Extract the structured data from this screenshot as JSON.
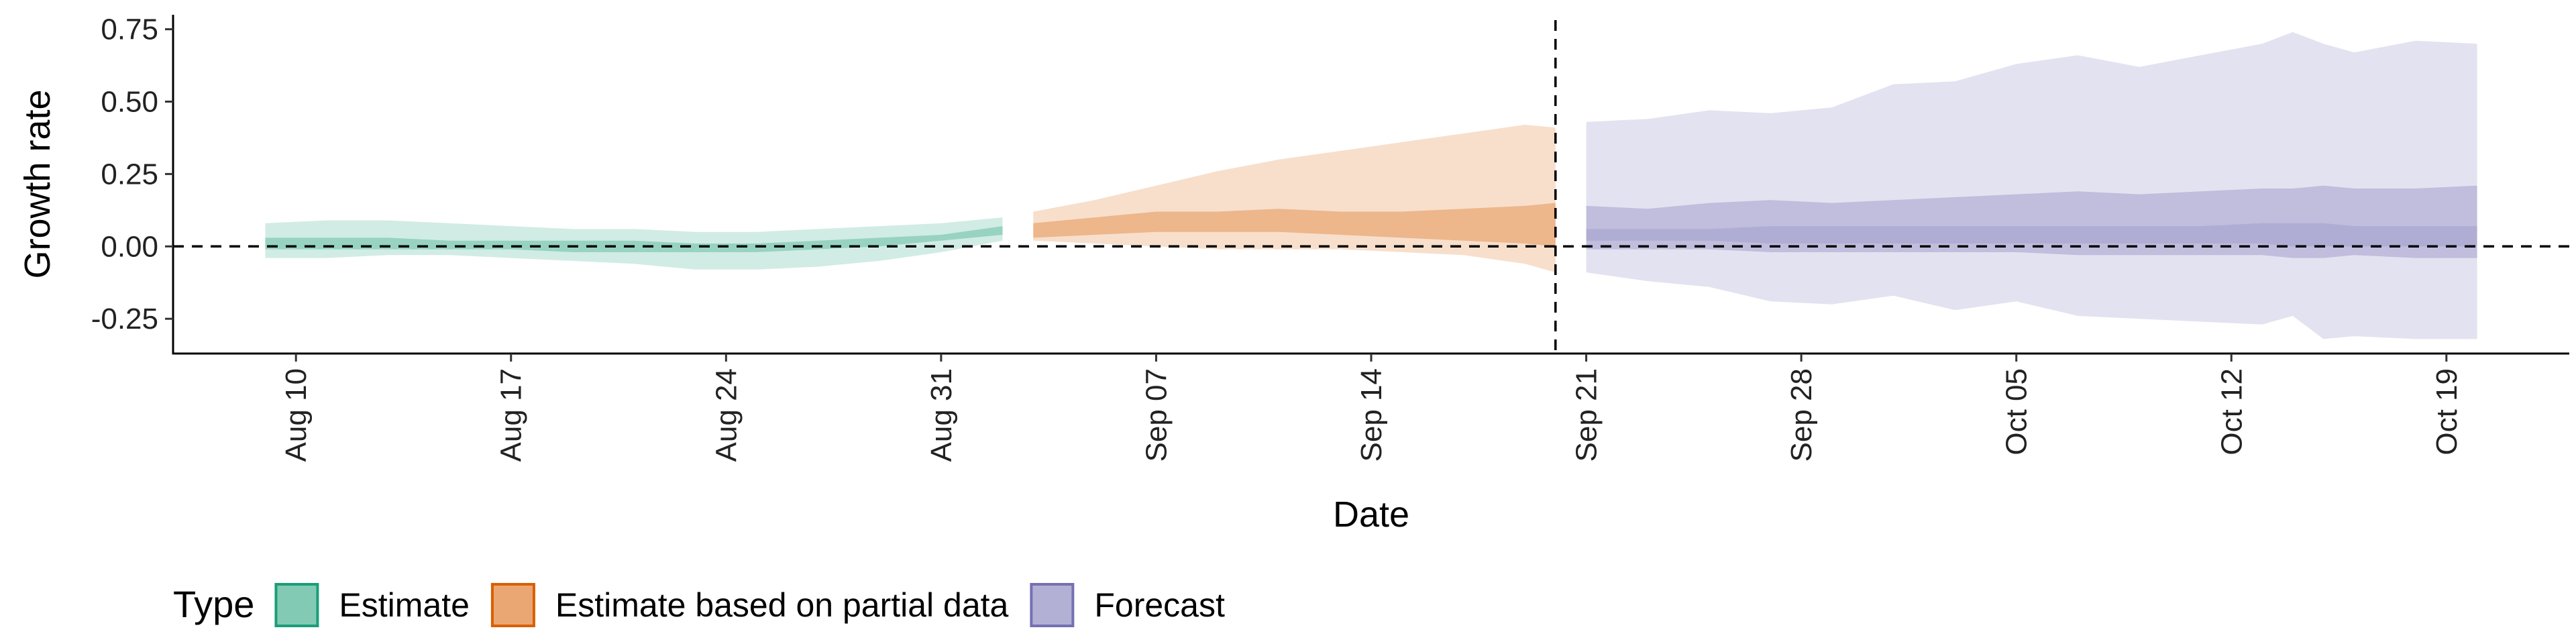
{
  "chart_data": {
    "type": "area",
    "xlabel": "Date",
    "ylabel": "Growth rate",
    "xlim": [
      "2020-08-06",
      "2020-10-23"
    ],
    "ylim": [
      -0.37,
      0.8
    ],
    "y_ticks": [
      -0.25,
      0.0,
      0.25,
      0.5,
      0.75
    ],
    "y_tick_labels": [
      "-0.25",
      "0.00",
      "0.25",
      "0.50",
      "0.75"
    ],
    "x_ticks": [
      "2020-08-10",
      "2020-08-17",
      "2020-08-24",
      "2020-08-31",
      "2020-09-07",
      "2020-09-14",
      "2020-09-21",
      "2020-09-28",
      "2020-10-05",
      "2020-10-12",
      "2020-10-19"
    ],
    "x_tick_labels": [
      "Aug 10",
      "Aug 17",
      "Aug 24",
      "Aug 31",
      "Sep 07",
      "Sep 14",
      "Sep 21",
      "Sep 28",
      "Oct 05",
      "Oct 12",
      "Oct 19"
    ],
    "hline_y": 0,
    "vline_x": "2020-09-20",
    "grid": false,
    "legend": {
      "title": "Type",
      "position": "bottom-left",
      "entries": [
        {
          "label": "Estimate",
          "fill": "#1b9e77",
          "border": "#1b9e77"
        },
        {
          "label": "Estimate based on partial data",
          "fill": "#d95f02",
          "border": "#d95f02"
        },
        {
          "label": "Forecast",
          "fill": "#7570b3",
          "border": "#7570b3"
        }
      ]
    },
    "series": [
      {
        "name": "Estimate",
        "color": "#1b9e77",
        "x": [
          "2020-08-09",
          "2020-08-11",
          "2020-08-13",
          "2020-08-15",
          "2020-08-17",
          "2020-08-19",
          "2020-08-21",
          "2020-08-23",
          "2020-08-25",
          "2020-08-27",
          "2020-08-29",
          "2020-08-31",
          "2020-09-02"
        ],
        "outer_upper": [
          0.08,
          0.09,
          0.09,
          0.08,
          0.07,
          0.06,
          0.06,
          0.05,
          0.05,
          0.06,
          0.07,
          0.08,
          0.1
        ],
        "outer_lower": [
          -0.04,
          -0.04,
          -0.03,
          -0.03,
          -0.04,
          -0.05,
          -0.06,
          -0.08,
          -0.08,
          -0.07,
          -0.05,
          -0.02,
          0.02
        ],
        "inner_upper": [
          0.03,
          0.03,
          0.03,
          0.02,
          0.02,
          0.02,
          0.02,
          0.01,
          0.01,
          0.02,
          0.03,
          0.04,
          0.07
        ],
        "inner_lower": [
          -0.01,
          -0.01,
          -0.01,
          -0.01,
          -0.01,
          -0.02,
          -0.02,
          -0.02,
          -0.02,
          -0.01,
          0.0,
          0.02,
          0.04
        ]
      },
      {
        "name": "Estimate based on partial data",
        "color": "#d95f02",
        "x": [
          "2020-09-03",
          "2020-09-05",
          "2020-09-07",
          "2020-09-09",
          "2020-09-11",
          "2020-09-13",
          "2020-09-15",
          "2020-09-17",
          "2020-09-19",
          "2020-09-20"
        ],
        "outer_upper": [
          0.12,
          0.16,
          0.21,
          0.26,
          0.3,
          0.33,
          0.36,
          0.39,
          0.42,
          0.41
        ],
        "outer_lower": [
          0.02,
          0.01,
          0.0,
          -0.01,
          -0.01,
          -0.01,
          -0.02,
          -0.03,
          -0.06,
          -0.09
        ],
        "inner_upper": [
          0.08,
          0.1,
          0.12,
          0.12,
          0.13,
          0.12,
          0.12,
          0.13,
          0.14,
          0.15
        ],
        "inner_lower": [
          0.03,
          0.04,
          0.05,
          0.05,
          0.05,
          0.04,
          0.03,
          0.02,
          0.01,
          0.0
        ]
      },
      {
        "name": "Forecast",
        "color": "#7570b3",
        "x": [
          "2020-09-21",
          "2020-09-23",
          "2020-09-25",
          "2020-09-27",
          "2020-09-29",
          "2020-10-01",
          "2020-10-03",
          "2020-10-05",
          "2020-10-07",
          "2020-10-09",
          "2020-10-11",
          "2020-10-13",
          "2020-10-14",
          "2020-10-15",
          "2020-10-16",
          "2020-10-18",
          "2020-10-20"
        ],
        "outer_upper": [
          0.43,
          0.44,
          0.47,
          0.46,
          0.48,
          0.56,
          0.57,
          0.63,
          0.66,
          0.62,
          0.66,
          0.7,
          0.74,
          0.7,
          0.67,
          0.71,
          0.7
        ],
        "outer_lower": [
          -0.09,
          -0.12,
          -0.14,
          -0.19,
          -0.2,
          -0.17,
          -0.22,
          -0.19,
          -0.24,
          -0.25,
          -0.26,
          -0.27,
          -0.24,
          -0.32,
          -0.31,
          -0.32,
          -0.32
        ],
        "inner_upper": [
          0.14,
          0.13,
          0.15,
          0.16,
          0.15,
          0.16,
          0.17,
          0.18,
          0.19,
          0.18,
          0.19,
          0.2,
          0.2,
          0.21,
          0.2,
          0.2,
          0.21
        ],
        "inner_lower": [
          -0.01,
          -0.01,
          -0.01,
          -0.02,
          -0.02,
          -0.02,
          -0.02,
          -0.02,
          -0.03,
          -0.03,
          -0.03,
          -0.03,
          -0.04,
          -0.04,
          -0.03,
          -0.04,
          -0.04
        ],
        "core_upper": [
          0.06,
          0.06,
          0.06,
          0.07,
          0.07,
          0.07,
          0.07,
          0.07,
          0.07,
          0.07,
          0.07,
          0.08,
          0.08,
          0.08,
          0.07,
          0.07,
          0.07
        ],
        "core_lower": [
          0.02,
          0.02,
          0.02,
          0.01,
          0.01,
          0.01,
          0.01,
          0.01,
          0.01,
          0.01,
          0.01,
          0.01,
          0.0,
          0.0,
          0.0,
          0.0,
          0.0
        ]
      }
    ]
  }
}
